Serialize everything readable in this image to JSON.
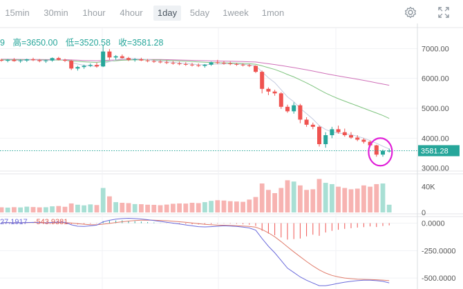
{
  "toolbar": {
    "timeframes": [
      "15min",
      "30min",
      "1hour",
      "4hour",
      "1day",
      "5day",
      "1week",
      "1mon"
    ],
    "active": "1day",
    "icons": [
      "gear-icon",
      "fullscreen-icon"
    ]
  },
  "legend": {
    "prefix": "9",
    "high_label": "高=",
    "high": "3650.00",
    "low_label": "低=",
    "low": "3520.58",
    "close_label": "收=",
    "close": "3581.28"
  },
  "macd_legend": {
    "v1": "27.1917",
    "v2": "-543.9381"
  },
  "price_axis": {
    "ticks": [
      "7000.00",
      "6000.00",
      "5000.00",
      "4000.00",
      "3000.00"
    ],
    "current": "3581.28"
  },
  "volume_axis": {
    "ticks": [
      "40K",
      "0"
    ]
  },
  "macd_axis": {
    "ticks": [
      "0.0000",
      "-250.0000",
      "-500.0000"
    ]
  },
  "colors": {
    "up": "#26a69a",
    "down": "#ef5350",
    "up_vol": "#a8dfd4",
    "down_vol": "#f7b3b1",
    "ma_short": "#c4cbe0",
    "ma_mid": "#7fc47f",
    "ma_long": "#cf6fb8",
    "current_line": "#26a69a",
    "highlight": "#e020d8",
    "macd_line": "#6a6adb",
    "signal_line": "#e07b6a"
  },
  "chart_data": {
    "type": "candlestick",
    "price_range": [
      2900,
      7700
    ],
    "volume_range": [
      0,
      60000
    ],
    "macd_range": [
      -600,
      60
    ],
    "candles": [
      [
        6620,
        6660,
        6560,
        6590,
        8000
      ],
      [
        6590,
        6650,
        6540,
        6620,
        7500
      ],
      [
        6620,
        6680,
        6560,
        6580,
        8200
      ],
      [
        6580,
        6640,
        6520,
        6600,
        7800
      ],
      [
        6600,
        6660,
        6550,
        6640,
        9000
      ],
      [
        6640,
        6690,
        6580,
        6610,
        8400
      ],
      [
        6610,
        6650,
        6540,
        6580,
        7900
      ],
      [
        6580,
        6630,
        6520,
        6600,
        8100
      ],
      [
        6600,
        6700,
        6560,
        6680,
        9500
      ],
      [
        6680,
        6720,
        6600,
        6620,
        10000
      ],
      [
        6620,
        6660,
        6550,
        6590,
        8800
      ],
      [
        6590,
        6620,
        6280,
        6330,
        14000
      ],
      [
        6330,
        6420,
        6260,
        6380,
        12000
      ],
      [
        6380,
        6460,
        6320,
        6420,
        11000
      ],
      [
        6420,
        6500,
        6380,
        6450,
        12500
      ],
      [
        6450,
        6520,
        6360,
        6400,
        11500
      ],
      [
        6400,
        7100,
        6380,
        6900,
        38000
      ],
      [
        6900,
        6980,
        6620,
        6700,
        25000
      ],
      [
        6700,
        6780,
        6620,
        6740,
        16000
      ],
      [
        6740,
        6800,
        6660,
        6680,
        15000
      ],
      [
        6680,
        6720,
        6580,
        6620,
        14500
      ],
      [
        6620,
        6680,
        6560,
        6640,
        13000
      ],
      [
        6640,
        6690,
        6580,
        6600,
        12800
      ],
      [
        6600,
        6650,
        6540,
        6580,
        12000
      ],
      [
        6580,
        6620,
        6520,
        6560,
        11800
      ],
      [
        6560,
        6610,
        6500,
        6540,
        11200
      ],
      [
        6540,
        6600,
        6480,
        6520,
        12200
      ],
      [
        6520,
        6580,
        6460,
        6500,
        13500
      ],
      [
        6500,
        6560,
        6440,
        6480,
        14000
      ],
      [
        6480,
        6540,
        6420,
        6460,
        13800
      ],
      [
        6460,
        6520,
        6400,
        6440,
        15000
      ],
      [
        6440,
        6500,
        6380,
        6420,
        14500
      ],
      [
        6420,
        6480,
        6360,
        6460,
        16000
      ],
      [
        6460,
        6560,
        6420,
        6540,
        18000
      ],
      [
        6540,
        6620,
        6480,
        6520,
        19000
      ],
      [
        6520,
        6580,
        6460,
        6500,
        18500
      ],
      [
        6500,
        6560,
        6440,
        6480,
        17500
      ],
      [
        6480,
        6520,
        6420,
        6460,
        17000
      ],
      [
        6460,
        6500,
        6400,
        6440,
        16500
      ],
      [
        6440,
        6480,
        6380,
        6420,
        20000
      ],
      [
        6420,
        6440,
        6180,
        6220,
        24000
      ],
      [
        6220,
        6260,
        5500,
        5650,
        45000
      ],
      [
        5650,
        5700,
        5440,
        5560,
        35000
      ],
      [
        5560,
        5620,
        5420,
        5500,
        30000
      ],
      [
        5500,
        5540,
        4980,
        5050,
        38000
      ],
      [
        5050,
        5120,
        4850,
        4900,
        50000
      ],
      [
        4900,
        5200,
        4820,
        5100,
        48000
      ],
      [
        5100,
        5150,
        4500,
        4620,
        42000
      ],
      [
        4620,
        4700,
        4380,
        4450,
        35000
      ],
      [
        4450,
        4520,
        4300,
        4380,
        36000
      ],
      [
        4380,
        4420,
        3720,
        3800,
        52000
      ],
      [
        3800,
        4200,
        3680,
        4100,
        46000
      ],
      [
        4100,
        4380,
        4000,
        4300,
        44000
      ],
      [
        4300,
        4420,
        4150,
        4200,
        40000
      ],
      [
        4200,
        4320,
        4050,
        4100,
        38000
      ],
      [
        4100,
        4200,
        3980,
        4020,
        36000
      ],
      [
        4020,
        4100,
        3900,
        3950,
        37000
      ],
      [
        3950,
        4000,
        3820,
        3880,
        42000
      ],
      [
        3880,
        3920,
        3700,
        3760,
        40000
      ],
      [
        3760,
        3780,
        3380,
        3450,
        44000
      ],
      [
        3450,
        3620,
        3380,
        3580,
        45000
      ],
      [
        3580,
        3650,
        3520,
        3580,
        12000
      ]
    ],
    "ma_short": [
      6610,
      6612,
      6605,
      6602,
      6610,
      6618,
      6608,
      6598,
      6615,
      6630,
      6622,
      6540,
      6480,
      6440,
      6420,
      6400,
      6500,
      6560,
      6620,
      6660,
      6670,
      6660,
      6650,
      6630,
      6600,
      6580,
      6560,
      6540,
      6520,
      6500,
      6480,
      6460,
      6455,
      6470,
      6480,
      6485,
      6490,
      6485,
      6470,
      6455,
      6420,
      6220,
      6020,
      5860,
      5620,
      5380,
      5220,
      5000,
      4820,
      4640,
      4420,
      4290,
      4210,
      4170,
      4150,
      4120,
      4060,
      4000,
      3920,
      3830,
      3730,
      3640
    ],
    "ma_mid": [
      6630,
      6628,
      6625,
      6622,
      6620,
      6620,
      6618,
      6615,
      6614,
      6616,
      6612,
      6590,
      6570,
      6555,
      6545,
      6535,
      6560,
      6575,
      6590,
      6605,
      6615,
      6620,
      6622,
      6622,
      6620,
      6615,
      6605,
      6595,
      6585,
      6575,
      6562,
      6550,
      6540,
      6530,
      6525,
      6520,
      6515,
      6510,
      6500,
      6490,
      6475,
      6420,
      6360,
      6300,
      6220,
      6130,
      6050,
      5950,
      5850,
      5740,
      5620,
      5510,
      5410,
      5320,
      5240,
      5160,
      5080,
      5000,
      4920,
      4840,
      4760,
      4660
    ],
    "ma_long": [
      6640,
      6640,
      6638,
      6636,
      6635,
      6634,
      6632,
      6630,
      6630,
      6630,
      6628,
      6618,
      6608,
      6600,
      6594,
      6590,
      6600,
      6608,
      6615,
      6622,
      6628,
      6632,
      6634,
      6635,
      6634,
      6632,
      6628,
      6622,
      6616,
      6610,
      6604,
      6598,
      6592,
      6586,
      6582,
      6578,
      6574,
      6570,
      6564,
      6556,
      6548,
      6520,
      6490,
      6462,
      6430,
      6396,
      6362,
      6324,
      6286,
      6246,
      6202,
      6160,
      6120,
      6082,
      6046,
      6010,
      5972,
      5934,
      5894,
      5852,
      5810,
      5770
    ],
    "macd_hist": [
      0,
      1,
      -1,
      0,
      1,
      2,
      0,
      -1,
      2,
      4,
      3,
      -8,
      -12,
      -10,
      -6,
      -4,
      18,
      22,
      24,
      26,
      22,
      18,
      14,
      10,
      6,
      2,
      -2,
      -4,
      -6,
      -8,
      -10,
      -12,
      -10,
      -8,
      -4,
      -2,
      -4,
      -6,
      -10,
      -14,
      -25,
      -70,
      -95,
      -110,
      -130,
      -150,
      -145,
      -140,
      -120,
      -105,
      -115,
      -85,
      -70,
      -60,
      -52,
      -46,
      -40,
      -36,
      -30,
      -35,
      -26,
      -20
    ],
    "macd_line": [
      5,
      6,
      4,
      5,
      6,
      7,
      5,
      3,
      7,
      10,
      8,
      -15,
      -28,
      -30,
      -24,
      -18,
      12,
      26,
      36,
      42,
      44,
      42,
      38,
      32,
      24,
      16,
      8,
      0,
      -8,
      -16,
      -24,
      -32,
      -34,
      -32,
      -28,
      -24,
      -26,
      -30,
      -36,
      -44,
      -64,
      -140,
      -210,
      -270,
      -340,
      -410,
      -450,
      -490,
      -520,
      -545,
      -570,
      -570,
      -560,
      -548,
      -538,
      -530,
      -524,
      -520,
      -520,
      -524,
      -530,
      -544
    ],
    "signal_line": [
      5,
      5,
      5,
      5,
      5,
      6,
      6,
      5,
      5,
      6,
      6,
      2,
      -4,
      -10,
      -14,
      -15,
      -9,
      -2,
      6,
      13,
      19,
      24,
      27,
      28,
      27,
      25,
      22,
      18,
      13,
      8,
      2,
      -5,
      -11,
      -15,
      -18,
      -19,
      -21,
      -23,
      -26,
      -30,
      -37,
      -58,
      -88,
      -124,
      -168,
      -216,
      -262,
      -306,
      -349,
      -390,
      -426,
      -455,
      -476,
      -490,
      -500,
      -506,
      -510,
      -512,
      -514,
      -516,
      -519,
      -524
    ]
  }
}
